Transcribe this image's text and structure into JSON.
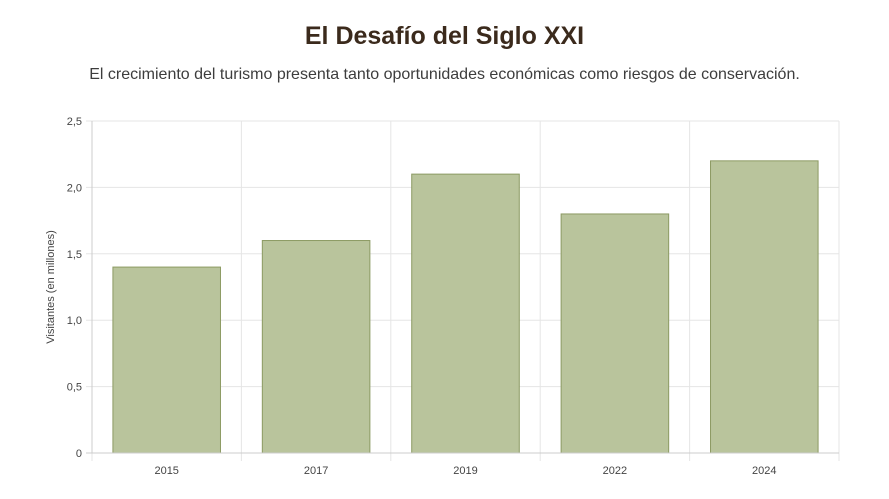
{
  "header": {
    "title": "El Desafío del Siglo XXI",
    "subtitle": "El crecimiento del turismo presenta tanto oportunidades económicas como riesgos de conservación."
  },
  "colors": {
    "bar_fill": "#b9c49c",
    "bar_stroke": "#8c9a63",
    "grid": "#e5e5e5",
    "axis": "#cccccc"
  },
  "chart_data": {
    "type": "bar",
    "title": "El Desafío del Siglo XXI",
    "subtitle": "El crecimiento del turismo presenta tanto oportunidades económicas como riesgos de conservación.",
    "categories": [
      "2015",
      "2017",
      "2019",
      "2022",
      "2024"
    ],
    "values": [
      1.4,
      1.6,
      2.1,
      1.8,
      2.2
    ],
    "xlabel": "",
    "ylabel": "Visitantes (en millones)",
    "ylim": [
      0,
      2.5
    ],
    "yticks": [
      0,
      0.5,
      1.0,
      1.5,
      2.0,
      2.5
    ],
    "ytick_labels": [
      "0",
      "0,5",
      "1,0",
      "1,5",
      "2,0",
      "2,5"
    ],
    "grid": true,
    "legend": "none"
  }
}
